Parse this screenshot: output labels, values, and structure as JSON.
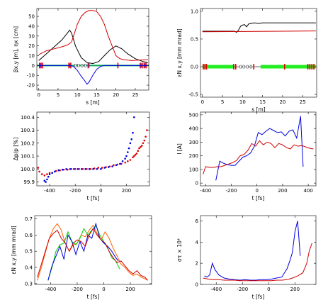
{
  "chart_data": [
    {
      "id": "p1",
      "type": "line",
      "xlabel": "s [m]",
      "ylabel": "βx,y [m], ηx [cm]",
      "xlim": [
        -0.5,
        28.5
      ],
      "ylim": [
        -25,
        58
      ],
      "xticks": [
        "0",
        "5",
        "10",
        "15",
        "20",
        "25"
      ],
      "yticks": [
        "-20",
        "-10",
        "0",
        "10",
        "20",
        "30",
        "40",
        "50"
      ],
      "series": [
        {
          "color": "#000000",
          "x": [
            0,
            2,
            4,
            6,
            7,
            8,
            8.5,
            9.5,
            11,
            12.5,
            14,
            15.5,
            17,
            18.5,
            20,
            21.5,
            23,
            25,
            27,
            28.3
          ],
          "y": [
            5,
            12,
            19,
            26,
            31,
            36,
            33,
            20,
            8,
            3,
            2,
            4,
            10,
            16,
            20,
            17,
            12,
            7,
            4,
            3
          ]
        },
        {
          "color": "#d00000",
          "x": [
            0,
            2,
            4,
            6,
            7.5,
            8.5,
            9,
            10,
            11,
            12,
            13,
            14,
            15,
            16,
            17,
            18,
            19,
            20,
            21,
            22,
            24,
            26,
            28.3
          ],
          "y": [
            11,
            15,
            17,
            19,
            21,
            24,
            30,
            42,
            50,
            54,
            56,
            56,
            55,
            50,
            42,
            30,
            20,
            10,
            7,
            6,
            5,
            5.5,
            6
          ]
        },
        {
          "color": "#0000e0",
          "x": [
            0,
            5,
            8,
            9,
            10,
            11,
            12,
            12.5,
            13,
            14,
            15,
            16,
            17,
            20,
            28.3
          ],
          "y": [
            0,
            0,
            0,
            -1,
            -5,
            -11,
            -16,
            -19,
            -17,
            -10,
            -4,
            -1,
            0,
            0,
            0
          ]
        }
      ]
    },
    {
      "id": "p2",
      "type": "line",
      "xlabel": "s [m]",
      "ylabel": "εN x,y [mm mrad]",
      "xlim": [
        -0.5,
        28.5
      ],
      "ylim": [
        -0.55,
        1.05
      ],
      "xticks": [
        "0",
        "5",
        "10",
        "15",
        "20",
        "25"
      ],
      "yticks": [
        "-0.5",
        "0.0",
        "0.5",
        "1.0"
      ],
      "series": [
        {
          "color": "#000000",
          "x": [
            0,
            5,
            8,
            8.5,
            9,
            9.5,
            10,
            10.5,
            11,
            11.5,
            12,
            13,
            14,
            15,
            18,
            20,
            24,
            28.3
          ],
          "y": [
            0.64,
            0.64,
            0.64,
            0.62,
            0.66,
            0.73,
            0.75,
            0.76,
            0.72,
            0.77,
            0.78,
            0.79,
            0.78,
            0.79,
            0.79,
            0.79,
            0.79,
            0.79
          ]
        },
        {
          "color": "#d00000",
          "x": [
            0,
            10,
            20,
            28.3
          ],
          "y": [
            0.63,
            0.635,
            0.64,
            0.645
          ]
        }
      ]
    },
    {
      "id": "p3",
      "type": "scatter",
      "xlabel": "t [fs]",
      "ylabel": "Δp/p [%]",
      "xlim": [
        -500,
        380
      ],
      "ylim": [
        99.87,
        100.44
      ],
      "xticks": [
        "-400",
        "-200",
        "0",
        "200"
      ],
      "yticks": [
        "99.9",
        "100.0",
        "100.1",
        "100.2",
        "100.3",
        "100.4"
      ],
      "series": [
        {
          "color": "#e00000",
          "x": [
            -490,
            -480,
            -460,
            -440,
            -420,
            -400,
            -380,
            -350,
            -320,
            -290,
            -260,
            -230,
            -200,
            -170,
            -140,
            -110,
            -80,
            -50,
            -20,
            10,
            40,
            70,
            100,
            130,
            160,
            190,
            210,
            230,
            250,
            260,
            270,
            280,
            290,
            300,
            310,
            320,
            330,
            340,
            350,
            360
          ],
          "y": [
            100.01,
            99.98,
            99.96,
            99.95,
            99.96,
            99.97,
            99.97,
            99.985,
            99.99,
            99.995,
            99.995,
            100.0,
            100.0,
            100.0,
            100.0,
            100.0,
            100.0,
            100.005,
            100.01,
            100.01,
            100.015,
            100.02,
            100.03,
            100.035,
            100.04,
            100.05,
            100.06,
            100.07,
            100.09,
            100.1,
            100.11,
            100.12,
            100.14,
            100.16,
            100.17,
            100.18,
            100.2,
            100.22,
            100.25,
            100.3
          ]
        },
        {
          "color": "#0000e0",
          "x": [
            -440,
            -430,
            -420,
            -410,
            -400,
            -380,
            -360,
            -330,
            -300,
            -270,
            -240,
            -210,
            -180,
            -150,
            -120,
            -90,
            -60,
            -30,
            0,
            30,
            60,
            90,
            120,
            150,
            170,
            190,
            200,
            210,
            220,
            230,
            240,
            250,
            260
          ],
          "y": [
            99.91,
            99.9,
            99.92,
            99.94,
            99.96,
            99.97,
            99.98,
            99.99,
            99.995,
            100.0,
            100.0,
            100.0,
            100.0,
            100.0,
            100.0,
            100.0,
            100.0,
            100.0,
            100.0,
            100.01,
            100.015,
            100.02,
            100.03,
            100.04,
            100.06,
            100.08,
            100.1,
            100.13,
            100.16,
            100.2,
            100.23,
            100.28,
            100.4
          ]
        }
      ]
    },
    {
      "id": "p4",
      "type": "line",
      "xlabel": "t [fs]",
      "ylabel": "I [A]",
      "xlim": [
        -440,
        460
      ],
      "ylim": [
        -20,
        520
      ],
      "xticks": [
        "-400",
        "-200",
        "0",
        "200",
        "400"
      ],
      "yticks": [
        "0",
        "100",
        "200",
        "300",
        "400",
        "500"
      ],
      "series": [
        {
          "color": "#0000e0",
          "x": [
            -320,
            -290,
            -260,
            -230,
            -200,
            -170,
            -140,
            -110,
            -80,
            -50,
            -20,
            10,
            40,
            70,
            100,
            130,
            160,
            190,
            220,
            250,
            280,
            310,
            340,
            360
          ],
          "y": [
            20,
            160,
            145,
            135,
            130,
            130,
            160,
            190,
            200,
            220,
            270,
            370,
            355,
            380,
            400,
            385,
            370,
            375,
            345,
            380,
            390,
            330,
            490,
            120
          ]
        },
        {
          "color": "#d00000",
          "x": [
            -420,
            -400,
            -370,
            -340,
            -310,
            -280,
            -250,
            -220,
            -190,
            -160,
            -130,
            -100,
            -70,
            -40,
            -10,
            20,
            50,
            80,
            110,
            140,
            170,
            200,
            230,
            260,
            290,
            320,
            350,
            380,
            410,
            440
          ],
          "y": [
            65,
            120,
            115,
            115,
            120,
            120,
            130,
            140,
            150,
            165,
            200,
            210,
            240,
            290,
            270,
            310,
            280,
            300,
            290,
            260,
            290,
            280,
            260,
            250,
            280,
            270,
            275,
            265,
            255,
            250
          ]
        }
      ]
    },
    {
      "id": "p5",
      "type": "line",
      "xlabel": "t [fs]",
      "ylabel": "εN x,y [mm mrad]",
      "xlim": [
        -520,
        360
      ],
      "ylim": [
        0.295,
        0.72
      ],
      "xticks": [
        "-400",
        "-200",
        "0",
        "200"
      ],
      "yticks": [
        "0.3",
        "0.4",
        "0.5",
        "0.6",
        "0.7"
      ],
      "series": [
        {
          "color": "#ff6600",
          "x": [
            -500,
            -470,
            -440,
            -410,
            -380,
            -350,
            -320,
            -290,
            -260,
            -230,
            -200,
            -170,
            -140,
            -110,
            -80,
            -50,
            -20,
            10,
            40,
            70,
            100,
            130,
            160,
            190,
            220,
            250,
            280,
            310,
            330
          ],
          "y": [
            0.32,
            0.4,
            0.49,
            0.58,
            0.64,
            0.67,
            0.63,
            0.55,
            0.5,
            0.54,
            0.55,
            0.6,
            0.59,
            0.63,
            0.66,
            0.61,
            0.57,
            0.62,
            0.58,
            0.52,
            0.47,
            0.42,
            0.4,
            0.37,
            0.35,
            0.36,
            0.34,
            0.33,
            0.32
          ]
        },
        {
          "color": "#00cc00",
          "x": [
            -420,
            -390,
            -360,
            -330,
            -300,
            -270,
            -240,
            -210,
            -180,
            -150,
            -120,
            -90,
            -60,
            -30,
            0,
            30,
            60,
            90,
            120
          ],
          "y": [
            0.32,
            0.4,
            0.5,
            0.54,
            0.55,
            0.62,
            0.56,
            0.54,
            0.58,
            0.64,
            0.6,
            0.63,
            0.66,
            0.6,
            0.56,
            0.52,
            0.46,
            0.44,
            0.39
          ]
        },
        {
          "color": "#0000e0",
          "x": [
            -420,
            -390,
            -360,
            -330,
            -300,
            -270,
            -240,
            -210,
            -180,
            -150,
            -120,
            -90,
            -60,
            -30,
            0,
            30,
            60,
            90,
            110
          ],
          "y": [
            0.32,
            0.41,
            0.47,
            0.53,
            0.45,
            0.6,
            0.56,
            0.48,
            0.56,
            0.5,
            0.6,
            0.58,
            0.67,
            0.58,
            0.55,
            0.53,
            0.5,
            0.46,
            0.44
          ]
        },
        {
          "color": "#d00000",
          "x": [
            -500,
            -470,
            -440,
            -410,
            -380,
            -350,
            -320,
            -290,
            -260,
            -230,
            -200,
            -170,
            -140,
            -110,
            -80,
            -50,
            -20,
            10,
            40,
            70,
            100,
            130,
            160,
            190,
            220,
            250,
            280,
            310,
            330
          ],
          "y": [
            0.34,
            0.42,
            0.5,
            0.58,
            0.61,
            0.63,
            0.58,
            0.55,
            0.5,
            0.55,
            0.57,
            0.56,
            0.53,
            0.6,
            0.64,
            0.6,
            0.57,
            0.55,
            0.5,
            0.46,
            0.43,
            0.44,
            0.41,
            0.38,
            0.36,
            0.38,
            0.35,
            0.34,
            0.32
          ]
        }
      ]
    },
    {
      "id": "p6",
      "type": "line",
      "xlabel": "t [fs]",
      "ylabel": "στ × 10⁴",
      "xlim": [
        -520,
        360
      ],
      "ylim": [
        0,
        6.5
      ],
      "xticks": [
        "-400",
        "-200",
        "0",
        "200"
      ],
      "yticks": [
        "0",
        "2",
        "4",
        "6"
      ],
      "series": [
        {
          "color": "#0000e0",
          "x": [
            -490,
            -470,
            -450,
            -430,
            -410,
            -380,
            -340,
            -300,
            -260,
            -220,
            -180,
            -140,
            -100,
            -60,
            -20,
            20,
            60,
            100,
            140,
            160,
            180,
            200,
            220,
            240
          ],
          "y": [
            0.8,
            0.7,
            0.9,
            2.0,
            1.4,
            0.9,
            0.6,
            0.5,
            0.45,
            0.4,
            0.45,
            0.4,
            0.4,
            0.45,
            0.45,
            0.5,
            0.6,
            0.7,
            1.5,
            2.2,
            3.0,
            5.0,
            6.0,
            2.7
          ]
        },
        {
          "color": "#d00000",
          "x": [
            -500,
            -460,
            -420,
            -380,
            -340,
            -300,
            -260,
            -220,
            -180,
            -140,
            -100,
            -60,
            -20,
            20,
            60,
            100,
            140,
            180,
            220,
            260,
            290,
            310,
            330
          ],
          "y": [
            0.6,
            0.5,
            0.45,
            0.45,
            0.4,
            0.4,
            0.4,
            0.35,
            0.35,
            0.35,
            0.35,
            0.35,
            0.35,
            0.35,
            0.4,
            0.4,
            0.45,
            0.6,
            0.8,
            1.1,
            2.0,
            3.2,
            3.9
          ]
        }
      ]
    }
  ]
}
